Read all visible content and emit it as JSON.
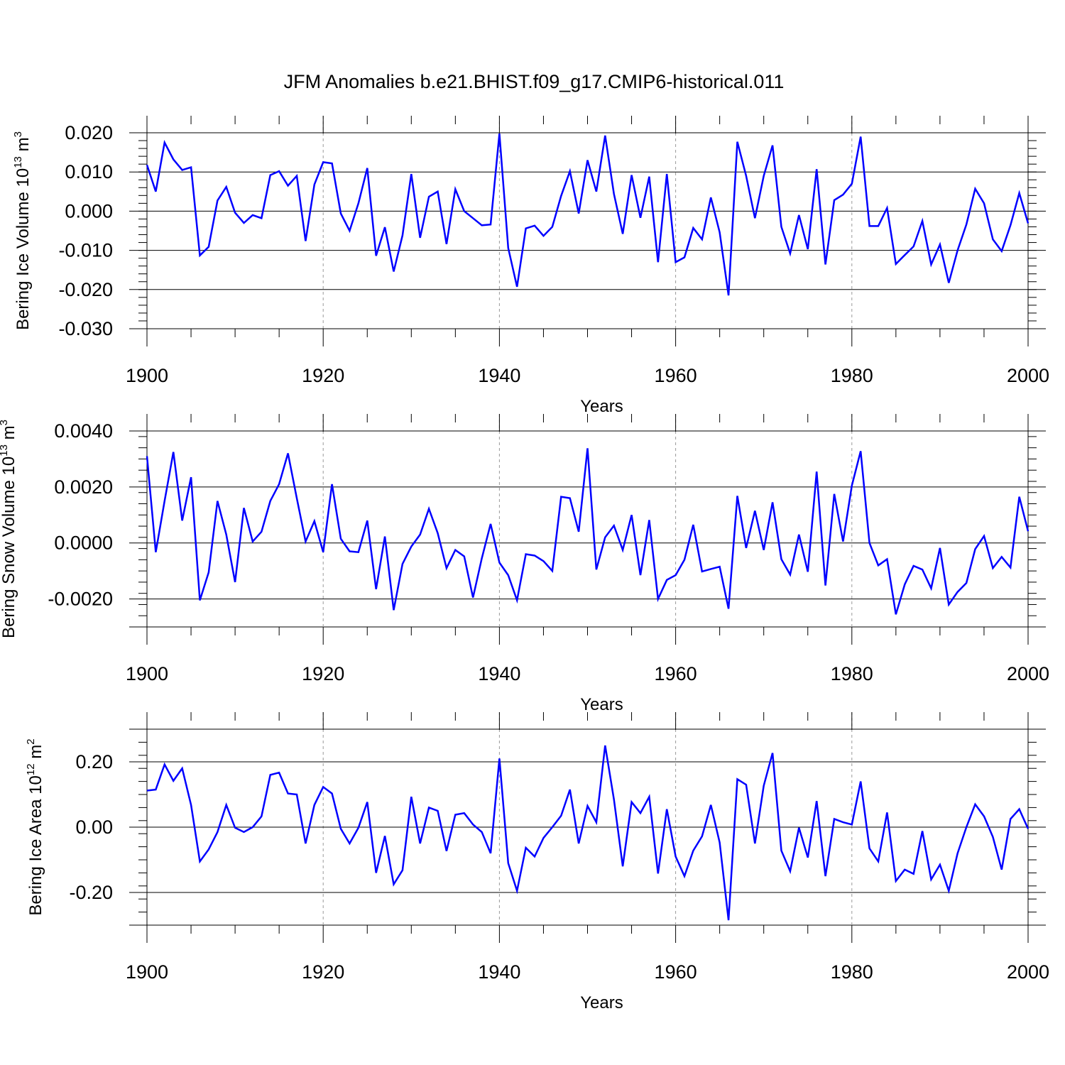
{
  "figure": {
    "title": "JFM Anomalies b.e21.BHIST.f09_g17.CMIP6-historical.011"
  },
  "colors": {
    "series": "#0000ff",
    "axis": "#000000",
    "grid": "#999999",
    "background": "#ffffff"
  },
  "chart_data": [
    {
      "type": "line",
      "title": "",
      "xlabel": "Years",
      "ylabel": {
        "text": "Bering Ice Volume 10",
        "sup": "13",
        "unit": " m",
        "unit_sup": "3"
      },
      "xlim": [
        1900,
        2000
      ],
      "ylim": [
        -0.03,
        0.02
      ],
      "grid": "dashed vertical lines at 1920, 1940, 1960, 1980",
      "x_ticks": [
        1900,
        1920,
        1940,
        1960,
        1980,
        2000
      ],
      "x_tick_labels": [
        "1900",
        "1920",
        "1940",
        "1960",
        "1980",
        "2000"
      ],
      "y_ticks": [
        0.02,
        0.01,
        0.0,
        -0.01,
        -0.02,
        -0.03
      ],
      "y_tick_labels": [
        "0.020",
        "0.010",
        "0.000",
        "-0.010",
        "-0.020",
        "-0.030"
      ],
      "series": [
        {
          "name": "Bering Ice Volume anomaly",
          "x_start": 1900,
          "values": [
            0.0118,
            0.005,
            0.0175,
            0.0132,
            0.0105,
            0.0112,
            -0.0113,
            -0.0091,
            0.0027,
            0.0062,
            -0.0004,
            -0.003,
            -0.001,
            -0.0018,
            0.0092,
            0.0102,
            0.0065,
            0.009,
            -0.0076,
            0.0068,
            0.0125,
            0.0122,
            -0.0006,
            -0.005,
            0.002,
            0.011,
            -0.0114,
            -0.0041,
            -0.0154,
            -0.0062,
            0.0095,
            -0.0068,
            0.0037,
            0.005,
            -0.0084,
            0.0056,
            0.0,
            -0.0018,
            -0.0036,
            -0.0034,
            0.0198,
            -0.0094,
            -0.0193,
            -0.0044,
            -0.0037,
            -0.0063,
            -0.004,
            0.0039,
            0.0102,
            -0.0006,
            0.013,
            0.005,
            0.0193,
            0.0044,
            -0.0058,
            0.0092,
            -0.0017,
            0.0088,
            -0.013,
            0.0095,
            -0.013,
            -0.0118,
            -0.0043,
            -0.0072,
            0.0035,
            -0.0054,
            -0.0215,
            0.0177,
            0.009,
            -0.0018,
            0.009,
            0.0168,
            -0.004,
            -0.0108,
            -0.001,
            -0.0097,
            0.0107,
            -0.0136,
            0.0028,
            0.0042,
            0.007,
            0.019,
            -0.0038,
            -0.0038,
            0.0008,
            -0.0135,
            -0.0112,
            -0.009,
            -0.0025,
            -0.0136,
            -0.0085,
            -0.0183,
            -0.01,
            -0.0034,
            0.0057,
            0.002,
            -0.0072,
            -0.0102,
            -0.0036,
            0.0046,
            -0.0031
          ]
        }
      ]
    },
    {
      "type": "line",
      "title": "",
      "xlabel": "Years",
      "ylabel": {
        "text": "Bering Snow Volume 10",
        "sup": "13",
        "unit": " m",
        "unit_sup": "3"
      },
      "xlim": [
        1900,
        2000
      ],
      "ylim": [
        -0.003,
        0.004
      ],
      "grid": "dashed vertical lines at 1920, 1940, 1960, 1980",
      "x_ticks": [
        1900,
        1920,
        1940,
        1960,
        1980,
        2000
      ],
      "x_tick_labels": [
        "1900",
        "1920",
        "1940",
        "1960",
        "1980",
        "2000"
      ],
      "y_ticks": [
        0.004,
        0.002,
        0.0,
        -0.002
      ],
      "y_tick_labels": [
        "0.0040",
        "0.0020",
        "0.0000",
        "-0.0020"
      ],
      "series": [
        {
          "name": "Bering Snow Volume anomaly",
          "x_start": 1900,
          "values": [
            0.0031,
            -0.00033,
            0.0015,
            0.00325,
            0.0008,
            0.00235,
            -0.00205,
            -0.00105,
            0.0015,
            0.0003,
            -0.0014,
            0.00125,
            5e-05,
            0.0004,
            0.0015,
            0.0021,
            0.0032,
            0.0016,
            5e-05,
            0.00078,
            -0.00033,
            0.0021,
            0.00015,
            -0.0003,
            -0.00033,
            0.0008,
            -0.00165,
            0.00023,
            -0.0024,
            -0.00075,
            -0.00013,
            0.0003,
            0.00122,
            0.00035,
            -0.0009,
            -0.00025,
            -0.00048,
            -0.00195,
            -0.00055,
            0.00068,
            -0.0007,
            -0.00115,
            -0.00205,
            -0.0004,
            -0.00045,
            -0.00065,
            -0.001,
            0.00165,
            0.0016,
            0.0004,
            0.00338,
            -0.00095,
            0.0002,
            0.00062,
            -0.00025,
            0.001,
            -0.00115,
            0.00082,
            -0.002,
            -0.00132,
            -0.00115,
            -0.0006,
            0.00065,
            -0.00102,
            -0.00093,
            -0.00085,
            -0.00235,
            0.00168,
            -0.00018,
            0.00115,
            -0.00025,
            0.00145,
            -0.00058,
            -0.00113,
            0.0003,
            -0.00103,
            0.00255,
            -0.00152,
            0.00175,
            5e-05,
            0.00205,
            0.00328,
            0.0,
            -0.0008,
            -0.00058,
            -0.00255,
            -0.00148,
            -0.00082,
            -0.00095,
            -0.00162,
            -0.00018,
            -0.0022,
            -0.00175,
            -0.00143,
            -0.00022,
            0.00025,
            -0.0009,
            -0.0005,
            -0.00088,
            0.00165,
            0.00042
          ]
        }
      ]
    },
    {
      "type": "line",
      "title": "",
      "xlabel": "Years",
      "ylabel": {
        "text": "Bering Ice Area 10",
        "sup": "12",
        "unit": " m",
        "unit_sup": "2"
      },
      "xlim": [
        1900,
        2000
      ],
      "ylim": [
        -0.3,
        0.3
      ],
      "grid": "dashed vertical lines at 1920, 1940, 1960, 1980",
      "x_ticks": [
        1900,
        1920,
        1940,
        1960,
        1980,
        2000
      ],
      "x_tick_labels": [
        "1900",
        "1920",
        "1940",
        "1960",
        "1980",
        "2000"
      ],
      "y_ticks": [
        0.2,
        0.0,
        -0.2
      ],
      "y_tick_labels": [
        "0.20",
        "0.00",
        "-0.20"
      ],
      "series": [
        {
          "name": "Bering Ice Area anomaly",
          "x_start": 1900,
          "values": [
            0.112,
            0.115,
            0.192,
            0.142,
            0.18,
            0.068,
            -0.105,
            -0.068,
            -0.015,
            0.068,
            -0.002,
            -0.015,
            0.0,
            0.033,
            0.16,
            0.167,
            0.103,
            0.1,
            -0.05,
            0.068,
            0.123,
            0.103,
            -0.005,
            -0.05,
            -0.002,
            0.077,
            -0.14,
            -0.027,
            -0.175,
            -0.132,
            0.093,
            -0.05,
            0.06,
            0.05,
            -0.073,
            0.038,
            0.043,
            0.008,
            -0.015,
            -0.08,
            0.21,
            -0.11,
            -0.195,
            -0.063,
            -0.09,
            -0.033,
            0.0,
            0.035,
            0.115,
            -0.05,
            0.065,
            0.015,
            0.25,
            0.085,
            -0.12,
            0.077,
            0.043,
            0.093,
            -0.142,
            0.055,
            -0.09,
            -0.15,
            -0.072,
            -0.028,
            0.068,
            -0.047,
            -0.285,
            0.147,
            0.13,
            -0.05,
            0.127,
            0.227,
            -0.072,
            -0.135,
            -0.002,
            -0.093,
            0.08,
            -0.15,
            0.025,
            0.015,
            0.008,
            0.14,
            -0.065,
            -0.105,
            0.045,
            -0.165,
            -0.13,
            -0.143,
            -0.012,
            -0.16,
            -0.115,
            -0.195,
            -0.08,
            0.0,
            0.07,
            0.033,
            -0.03,
            -0.13,
            0.025,
            0.055,
            -0.005
          ]
        }
      ]
    }
  ]
}
